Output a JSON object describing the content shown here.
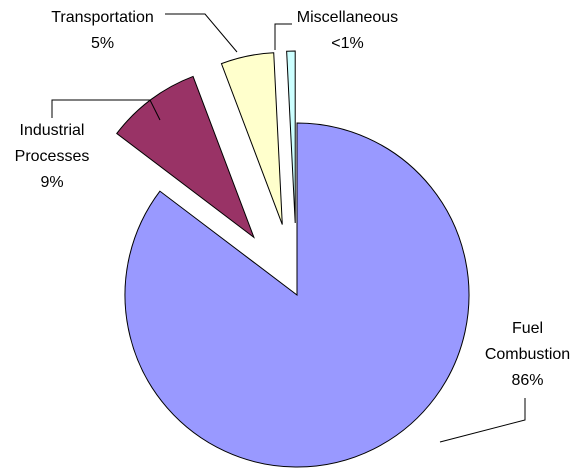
{
  "chart_data": {
    "type": "pie",
    "categories": [
      "Fuel Combustion",
      "Industrial Processes",
      "Transportation",
      "Miscellaneous"
    ],
    "values": [
      86,
      9,
      5,
      0.8
    ],
    "value_labels": [
      "86%",
      "9%",
      "5%",
      "<1%"
    ],
    "colors": [
      "#9999ff",
      "#993366",
      "#ffffcc",
      "#ccffff"
    ],
    "exploded": [
      false,
      true,
      true,
      true
    ]
  }
}
